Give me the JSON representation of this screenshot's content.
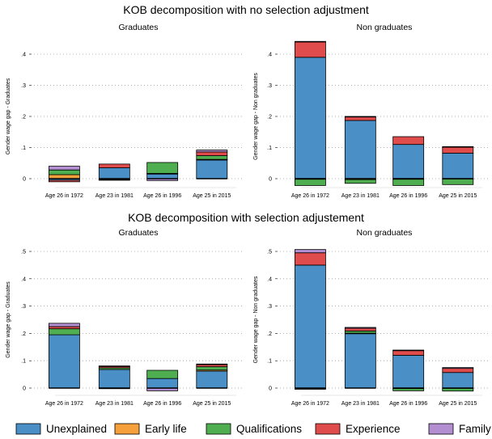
{
  "colors": {
    "Unexplained": "#4a90c6",
    "Early life": "#f5a03a",
    "Qualifications": "#4fae4f",
    "Experience": "#e04b4b",
    "Family": "#b38fd1"
  },
  "legend": [
    "Unexplained",
    "Early life",
    "Qualifications",
    "Experience",
    "Family"
  ],
  "categories": [
    "Age 26 in 1972",
    "Age 23 in 1981",
    "Age 26 in 1996",
    "Age 25 in 2015"
  ],
  "rows": [
    {
      "title": "KOB decomposition with no selection adjustment"
    },
    {
      "title": "KOB decomposition with selection adjustement"
    }
  ],
  "chart_data": [
    {
      "type": "bar",
      "stacked": true,
      "title": "Graduates",
      "ylabel": "Gender wage gap - Graduates",
      "ylim": [
        -0.01,
        0.41
      ],
      "yticks": [
        0,
        0.1,
        0.2,
        0.3,
        0.4
      ],
      "ytick_labels": [
        "0",
        ".1",
        ".2",
        ".3",
        ".4"
      ],
      "categories": [
        "Age 26 in 1972",
        "Age 23 in 1981",
        "Age 26 in 1996",
        "Age 25 in 2015"
      ],
      "series": [
        {
          "name": "Unexplained",
          "values": [
            -0.005,
            0.035,
            0.015,
            0.06
          ]
        },
        {
          "name": "Early life",
          "values": [
            0.013,
            0.0,
            0.002,
            0.002
          ]
        },
        {
          "name": "Qualifications",
          "values": [
            0.015,
            -0.003,
            0.035,
            0.012
          ]
        },
        {
          "name": "Experience",
          "values": [
            -0.005,
            0.012,
            0.0,
            0.012
          ]
        },
        {
          "name": "Family",
          "values": [
            0.012,
            -0.001,
            -0.006,
            0.006
          ]
        }
      ]
    },
    {
      "type": "bar",
      "stacked": true,
      "title": "Non graduates",
      "ylabel": "Gender wage gap - Non graduates",
      "ylim": [
        -0.03,
        0.44
      ],
      "yticks": [
        0,
        0.1,
        0.2,
        0.3,
        0.4
      ],
      "ytick_labels": [
        "0",
        ".1",
        ".2",
        ".3",
        ".4"
      ],
      "categories": [
        "Age 26 in 1972",
        "Age 23 in 1981",
        "Age 26 in 1996",
        "Age 25 in 2015"
      ],
      "series": [
        {
          "name": "Unexplained",
          "values": [
            0.39,
            0.187,
            0.11,
            0.082
          ]
        },
        {
          "name": "Early life",
          "values": [
            -0.002,
            -0.003,
            -0.002,
            -0.001
          ]
        },
        {
          "name": "Qualifications",
          "values": [
            -0.02,
            -0.012,
            -0.02,
            -0.018
          ]
        },
        {
          "name": "Experience",
          "values": [
            0.05,
            0.012,
            0.025,
            0.02
          ]
        },
        {
          "name": "Family",
          "values": [
            0.001,
            0.001,
            0.0,
            0.001
          ]
        }
      ]
    },
    {
      "type": "bar",
      "stacked": true,
      "title": "Graduates",
      "ylabel": "Gender wage gap - Graduates",
      "ylim": [
        -0.01,
        0.51
      ],
      "yticks": [
        0,
        0.1,
        0.2,
        0.3,
        0.4,
        0.5
      ],
      "ytick_labels": [
        "0",
        ".1",
        ".2",
        ".3",
        ".4",
        ".5"
      ],
      "categories": [
        "Age 26 in 1972",
        "Age 23 in 1981",
        "Age 26 in 1996",
        "Age 25 in 2015"
      ],
      "series": [
        {
          "name": "Unexplained",
          "values": [
            0.195,
            0.068,
            0.035,
            0.062
          ]
        },
        {
          "name": "Early life",
          "values": [
            0.0,
            -0.002,
            0.0,
            0.004
          ]
        },
        {
          "name": "Qualifications",
          "values": [
            0.022,
            0.006,
            0.03,
            0.012
          ]
        },
        {
          "name": "Experience",
          "values": [
            0.008,
            0.006,
            0.0,
            0.008
          ]
        },
        {
          "name": "Family",
          "values": [
            0.012,
            0.001,
            -0.01,
            0.002
          ]
        }
      ]
    },
    {
      "type": "bar",
      "stacked": true,
      "title": "Non graduates",
      "ylabel": "Gender wage gap - Non graduates",
      "ylim": [
        -0.01,
        0.51
      ],
      "yticks": [
        0,
        0.1,
        0.2,
        0.3,
        0.4,
        0.5
      ],
      "ytick_labels": [
        "0",
        ".1",
        ".2",
        ".3",
        ".4",
        ".5"
      ],
      "categories": [
        "Age 26 in 1972",
        "Age 23 in 1981",
        "Age 26 in 1996",
        "Age 25 in 2015"
      ],
      "series": [
        {
          "name": "Unexplained",
          "values": [
            0.45,
            0.2,
            0.12,
            0.057
          ]
        },
        {
          "name": "Early life",
          "values": [
            -0.002,
            0.001,
            -0.002,
            -0.001
          ]
        },
        {
          "name": "Qualifications",
          "values": [
            -0.002,
            0.008,
            -0.008,
            -0.01
          ]
        },
        {
          "name": "Experience",
          "values": [
            0.045,
            0.01,
            0.018,
            0.015
          ]
        },
        {
          "name": "Family",
          "values": [
            0.012,
            0.003,
            0.001,
            0.003
          ]
        }
      ]
    }
  ]
}
